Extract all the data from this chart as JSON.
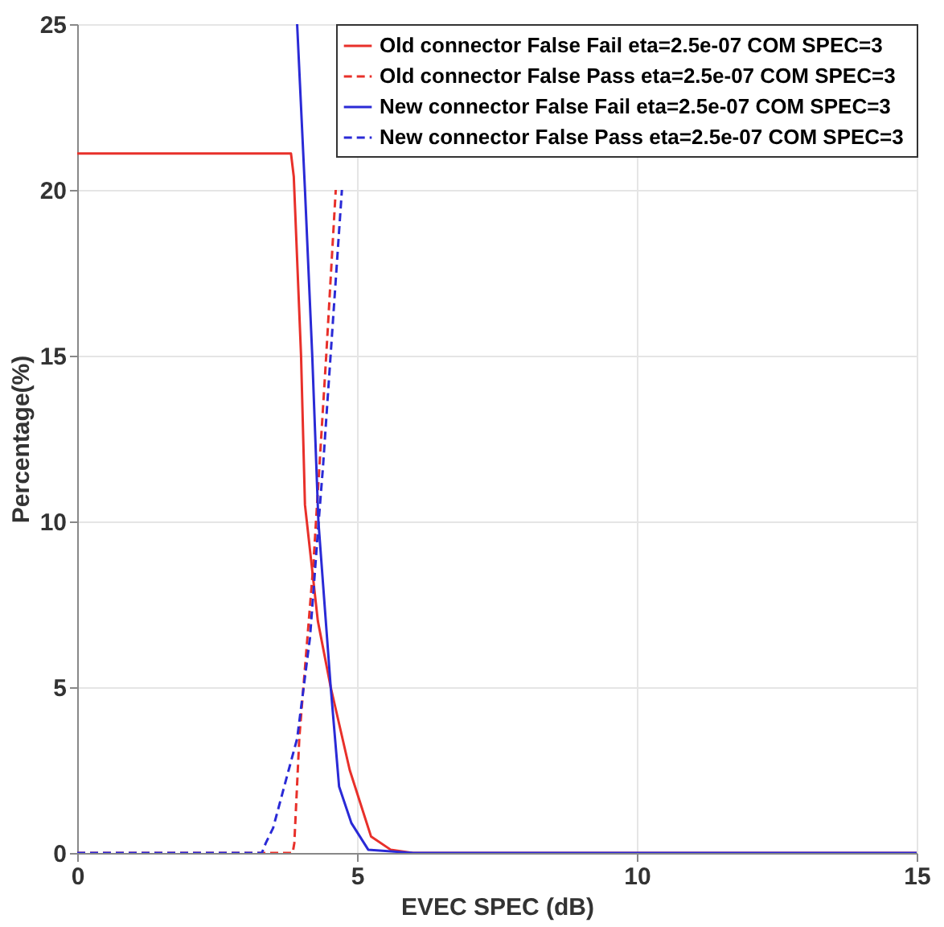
{
  "chart_data": {
    "type": "line",
    "xlabel": "EVEC SPEC (dB)",
    "ylabel": "Percentage(%)",
    "xlim": [
      0,
      15
    ],
    "ylim": [
      0,
      25
    ],
    "xticks": [
      0,
      5,
      10,
      15
    ],
    "yticks": [
      0,
      5,
      10,
      15,
      20,
      25
    ],
    "grid": true,
    "legend": "top right",
    "marker": "none",
    "series": [
      {
        "name": "Old connector False Fail  eta=2.5e-07 COM SPEC=3",
        "color": "#e8302a",
        "line_style": "solid",
        "x": [
          0,
          3.82,
          3.87,
          4.0,
          4.07,
          4.3,
          4.53,
          4.87,
          5.25,
          5.6,
          6,
          15
        ],
        "values": [
          21.1,
          21.1,
          20.4,
          15,
          10.5,
          7,
          5,
          2.5,
          0.5,
          0.1,
          0,
          0
        ]
      },
      {
        "name": "Old connector False Pass  eta=2.5e-07 COM SPEC=3",
        "color": "#e8302a",
        "line_style": "dashed",
        "x": [
          0,
          3.85,
          3.88,
          3.97,
          4.22,
          4.45,
          4.62
        ],
        "values": [
          0,
          0,
          0.3,
          3.5,
          8.7,
          15,
          20
        ]
      },
      {
        "name": "New connector False Fail  eta=2.5e-07 COM SPEC=3",
        "color": "#2a2ad6",
        "line_style": "solid",
        "x": [
          3.93,
          4.07,
          4.2,
          4.31,
          4.53,
          4.68,
          4.9,
          5.2,
          6,
          15
        ],
        "values": [
          25,
          20,
          15,
          10,
          5,
          2,
          0.9,
          0.1,
          0,
          0
        ]
      },
      {
        "name": "New connector False Pass  eta=2.5e-07 COM SPEC=3",
        "color": "#2a2ad6",
        "line_style": "dashed",
        "x": [
          0,
          3.3,
          3.37,
          3.5,
          3.93,
          4.16,
          4.31,
          4.39,
          4.73
        ],
        "values": [
          0,
          0,
          0.3,
          0.75,
          3.45,
          6.5,
          9.9,
          11.6,
          20
        ]
      }
    ]
  }
}
